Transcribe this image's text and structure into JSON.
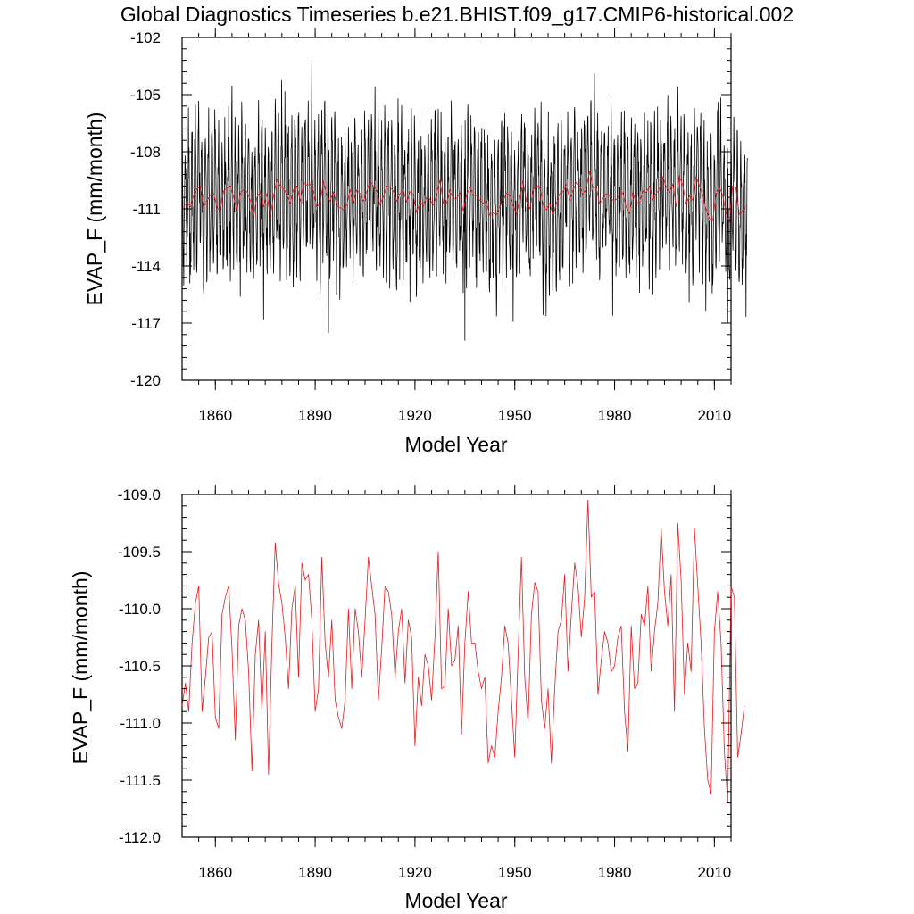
{
  "title": "Global Diagnostics Timeseries b.e21.BHIST.f09_g17.CMIP6-historical.002",
  "colors": {
    "monthly": "#000000",
    "annual": "#e8191e",
    "axis": "#000000",
    "background": "#ffffff"
  },
  "chart_data": [
    {
      "type": "line",
      "xlabel": "Model Year",
      "ylabel": "EVAP_F (mm/month)",
      "xlim": [
        1850,
        2015
      ],
      "ylim": [
        -120,
        -102
      ],
      "x_ticks": [
        1860,
        1890,
        1920,
        1950,
        1980,
        2010
      ],
      "x_tick_labels": [
        "1860",
        "1890",
        "1920",
        "1950",
        "1980",
        "2010"
      ],
      "y_ticks": [
        -120,
        -117,
        -114,
        -111,
        -108,
        -105,
        -102
      ],
      "y_tick_labels": [
        "-120",
        "-117",
        "-114",
        "-111",
        "-108",
        "-105",
        "-102"
      ],
      "series": [
        {
          "name": "monthly",
          "color": "#000000",
          "x_start": 1850,
          "x_step": 0.08333,
          "seasonal_amplitude": 3.2,
          "monthly_noise": 1.6,
          "notable_extremes": [
            {
              "x": 1889,
              "y": -103.2
            },
            {
              "x": 1894,
              "y": -117.5
            },
            {
              "x": 1935,
              "y": -117.9
            },
            {
              "x": 2014,
              "y": -117.0
            }
          ],
          "values_source": "annual series + seasonal cycle"
        },
        {
          "name": "annual",
          "color": "#e8191e",
          "values_source": "same as plot 2 annual series"
        }
      ]
    },
    {
      "type": "line",
      "xlabel": "Model Year",
      "ylabel": "EVAP_F (mm/month)",
      "xlim": [
        1850,
        2015
      ],
      "ylim": [
        -112,
        -109
      ],
      "x_ticks": [
        1860,
        1890,
        1920,
        1950,
        1980,
        2010
      ],
      "x_tick_labels": [
        "1860",
        "1890",
        "1920",
        "1950",
        "1980",
        "2010"
      ],
      "y_ticks": [
        -112.0,
        -111.5,
        -111.0,
        -110.5,
        -110.0,
        -109.5,
        -109.0
      ],
      "y_tick_labels": [
        "-112.0",
        "-111.5",
        "-111.0",
        "-110.5",
        "-110.0",
        "-109.5",
        "-109.0"
      ],
      "series": [
        {
          "name": "annual",
          "color": "#e8191e",
          "x_start": 1850,
          "x_step": 1,
          "values": [
            -110.85,
            -110.65,
            -110.9,
            -110.3,
            -109.95,
            -109.8,
            -110.9,
            -110.6,
            -110.25,
            -110.2,
            -110.95,
            -111.05,
            -110.05,
            -109.9,
            -109.8,
            -110.35,
            -111.15,
            -110.15,
            -110.0,
            -110.1,
            -110.55,
            -111.42,
            -110.4,
            -110.1,
            -110.9,
            -110.2,
            -111.45,
            -110.3,
            -109.42,
            -109.78,
            -109.95,
            -110.25,
            -110.7,
            -110.0,
            -109.8,
            -110.6,
            -109.6,
            -109.75,
            -109.7,
            -110.1,
            -110.9,
            -110.7,
            -109.55,
            -110.3,
            -110.6,
            -110.1,
            -110.8,
            -110.95,
            -111.05,
            -110.8,
            -110.0,
            -110.7,
            -110.0,
            -110.2,
            -110.6,
            -110.1,
            -109.55,
            -109.8,
            -110.05,
            -110.8,
            -110.35,
            -109.8,
            -109.85,
            -110.05,
            -110.6,
            -110.2,
            -110.0,
            -110.65,
            -110.1,
            -110.25,
            -111.2,
            -110.6,
            -110.85,
            -110.4,
            -110.5,
            -110.8,
            -110.25,
            -109.5,
            -110.7,
            -110.68,
            -110.0,
            -110.5,
            -110.45,
            -110.15,
            -111.1,
            -110.3,
            -109.85,
            -110.3,
            -110.3,
            -110.55,
            -110.7,
            -110.6,
            -111.35,
            -111.2,
            -111.3,
            -110.9,
            -110.6,
            -110.15,
            -110.3,
            -110.8,
            -111.3,
            -110.4,
            -109.55,
            -110.6,
            -111.0,
            -110.05,
            -109.77,
            -109.85,
            -110.8,
            -111.05,
            -110.7,
            -111.35,
            -110.7,
            -110.2,
            -110.1,
            -109.7,
            -110.55,
            -110.05,
            -109.6,
            -109.8,
            -110.25,
            -109.9,
            -109.05,
            -109.9,
            -109.85,
            -110.75,
            -110.45,
            -110.2,
            -110.3,
            -110.55,
            -110.5,
            -110.25,
            -110.15,
            -110.9,
            -111.25,
            -110.15,
            -110.7,
            -110.65,
            -110.05,
            -110.15,
            -109.8,
            -110.55,
            -110.2,
            -109.95,
            -109.3,
            -109.85,
            -110.15,
            -109.7,
            -110.9,
            -109.25,
            -109.75,
            -110.75,
            -110.3,
            -110.55,
            -109.3,
            -109.8,
            -110.3,
            -111.05,
            -111.5,
            -111.62,
            -110.2,
            -109.85,
            -110.3,
            -111.25,
            -111.7,
            -109.8,
            -109.9,
            -111.3,
            -111.1,
            -110.85
          ]
        }
      ]
    }
  ]
}
